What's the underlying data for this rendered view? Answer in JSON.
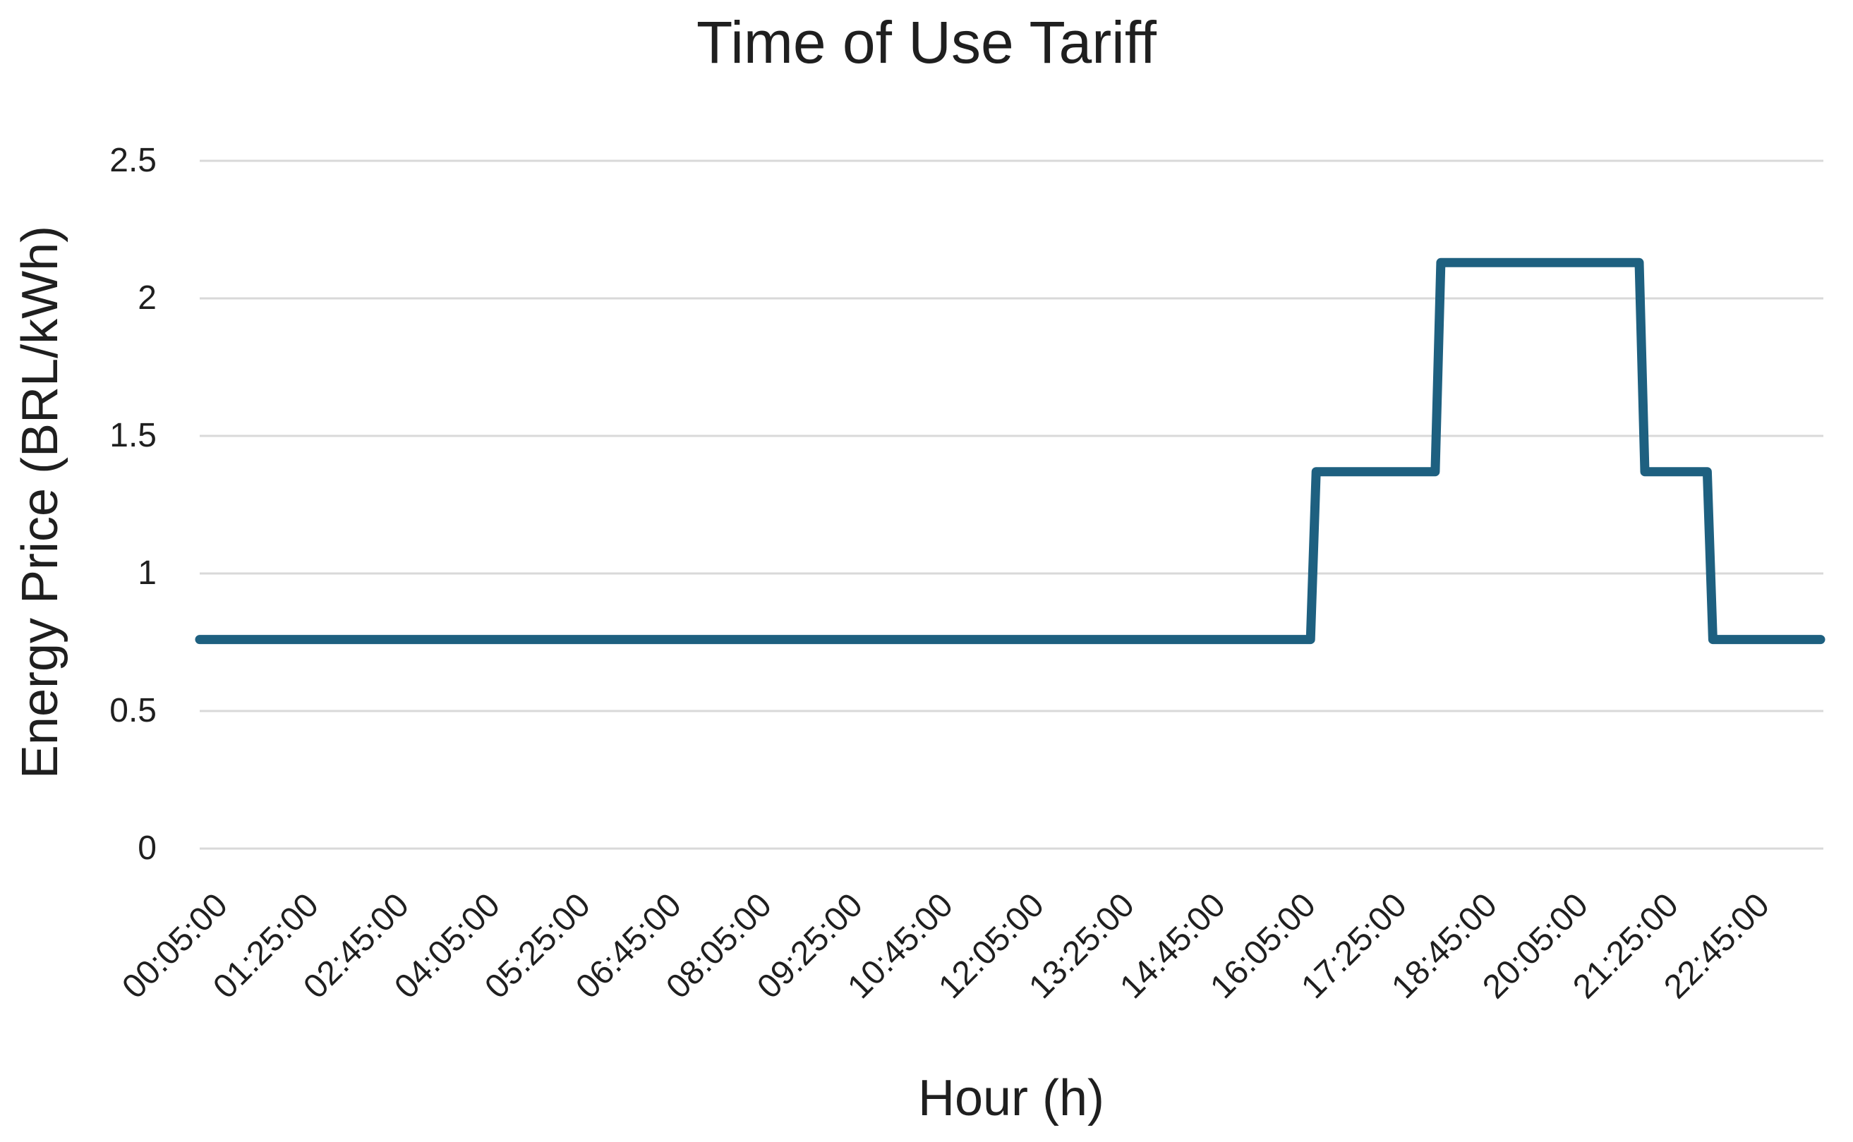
{
  "chart_data": {
    "type": "line",
    "subtype": "step",
    "title": "Time of Use Tariff",
    "xlabel": "Hour (h)",
    "ylabel": "Energy Price (BRL/kWh)",
    "legend_position": "none",
    "grid": true,
    "ylim": [
      0,
      2.5
    ],
    "y_ticks": [
      "2.5",
      "2",
      "1.5",
      "1",
      "0.5",
      "0"
    ],
    "x_ticks": [
      "00:05:00",
      "01:25:00",
      "02:45:00",
      "04:05:00",
      "05:25:00",
      "06:45:00",
      "08:05:00",
      "09:25:00",
      "10:45:00",
      "12:05:00",
      "13:25:00",
      "14:45:00",
      "16:05:00",
      "17:25:00",
      "18:45:00",
      "20:05:00",
      "21:25:00",
      "22:45:00"
    ],
    "x_start": "00:05:00",
    "x_end": "23:55:00",
    "x_resolution_minutes": 5,
    "series": [
      {
        "name": "Energy Price (BRL/kWh)",
        "segments": [
          {
            "from": "00:05:00",
            "to": "16:25:00",
            "value": 0.76
          },
          {
            "from": "16:30:00",
            "to": "18:15:00",
            "value": 1.37
          },
          {
            "from": "18:20:00",
            "to": "21:15:00",
            "value": 2.13
          },
          {
            "from": "21:20:00",
            "to": "22:15:00",
            "value": 1.37
          },
          {
            "from": "22:20:00",
            "to": "23:55:00",
            "value": 0.76
          }
        ]
      }
    ],
    "colors": {
      "line": "#1e6080",
      "gridline": "#d9d9d9",
      "text": "#1f1f1f",
      "background": "#ffffff"
    }
  }
}
